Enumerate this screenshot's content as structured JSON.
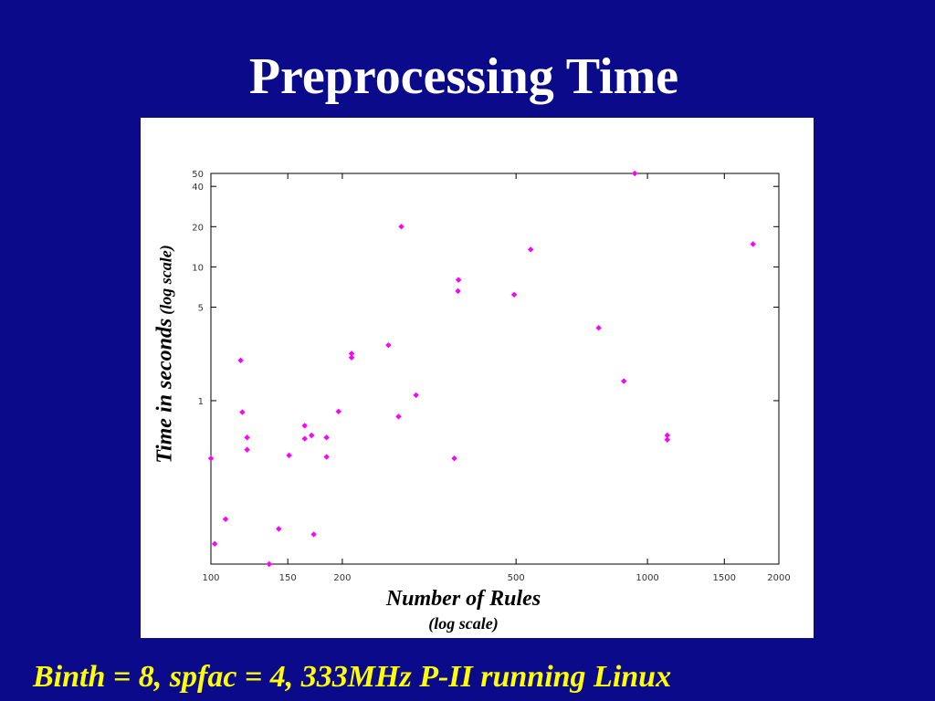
{
  "slide": {
    "title": "Preprocessing Time",
    "caption": "Binth = 8, spfac = 4, 333MHz P-II running Linux"
  },
  "colors": {
    "background": "#0a0a8a",
    "title": "#ffffff",
    "caption": "#ffff00",
    "point": "#ff00ff"
  },
  "chart_data": {
    "type": "scatter",
    "title": "",
    "xlabel": "Number of Rules",
    "xlabel_note": "(log scale)",
    "ylabel": "Time in seconds",
    "ylabel_note": "(log scale)",
    "xscale": "log",
    "yscale": "log",
    "xlim": [
      100,
      2000
    ],
    "ylim": [
      0.06,
      50
    ],
    "grid": false,
    "legend": "none",
    "x_ticks": [
      {
        "value": 100,
        "label": "100"
      },
      {
        "value": 150,
        "label": "150"
      },
      {
        "value": 200,
        "label": "200"
      },
      {
        "value": 500,
        "label": "500"
      },
      {
        "value": 1000,
        "label": "1000"
      },
      {
        "value": 1500,
        "label": "1500"
      },
      {
        "value": 2000,
        "label": "2000"
      }
    ],
    "y_ticks": [
      {
        "value": 1,
        "label": "1"
      },
      {
        "value": 5,
        "label": "5"
      },
      {
        "value": 10,
        "label": "10"
      },
      {
        "value": 20,
        "label": "20"
      },
      {
        "value": 40,
        "label": "40"
      },
      {
        "value": 50,
        "label": "50"
      }
    ],
    "points": [
      {
        "x": 100,
        "y": 0.37
      },
      {
        "x": 102,
        "y": 0.085
      },
      {
        "x": 108,
        "y": 0.13
      },
      {
        "x": 117,
        "y": 2.0
      },
      {
        "x": 118,
        "y": 0.82
      },
      {
        "x": 121,
        "y": 0.53
      },
      {
        "x": 121,
        "y": 0.43
      },
      {
        "x": 136,
        "y": 0.06
      },
      {
        "x": 143,
        "y": 0.11
      },
      {
        "x": 151,
        "y": 0.39
      },
      {
        "x": 164,
        "y": 0.65
      },
      {
        "x": 164,
        "y": 0.52
      },
      {
        "x": 170,
        "y": 0.55
      },
      {
        "x": 172,
        "y": 0.1
      },
      {
        "x": 184,
        "y": 0.38
      },
      {
        "x": 184,
        "y": 0.53
      },
      {
        "x": 196,
        "y": 0.83
      },
      {
        "x": 210,
        "y": 2.1
      },
      {
        "x": 210,
        "y": 2.25
      },
      {
        "x": 255,
        "y": 2.6
      },
      {
        "x": 269,
        "y": 0.76
      },
      {
        "x": 273,
        "y": 20
      },
      {
        "x": 295,
        "y": 1.1
      },
      {
        "x": 361,
        "y": 0.37
      },
      {
        "x": 368,
        "y": 6.6
      },
      {
        "x": 369,
        "y": 8.0
      },
      {
        "x": 495,
        "y": 6.2
      },
      {
        "x": 540,
        "y": 13.5
      },
      {
        "x": 773,
        "y": 3.5
      },
      {
        "x": 883,
        "y": 1.4
      },
      {
        "x": 935,
        "y": 52
      },
      {
        "x": 1110,
        "y": 0.51
      },
      {
        "x": 1110,
        "y": 0.55
      },
      {
        "x": 1745,
        "y": 14.8
      }
    ]
  }
}
